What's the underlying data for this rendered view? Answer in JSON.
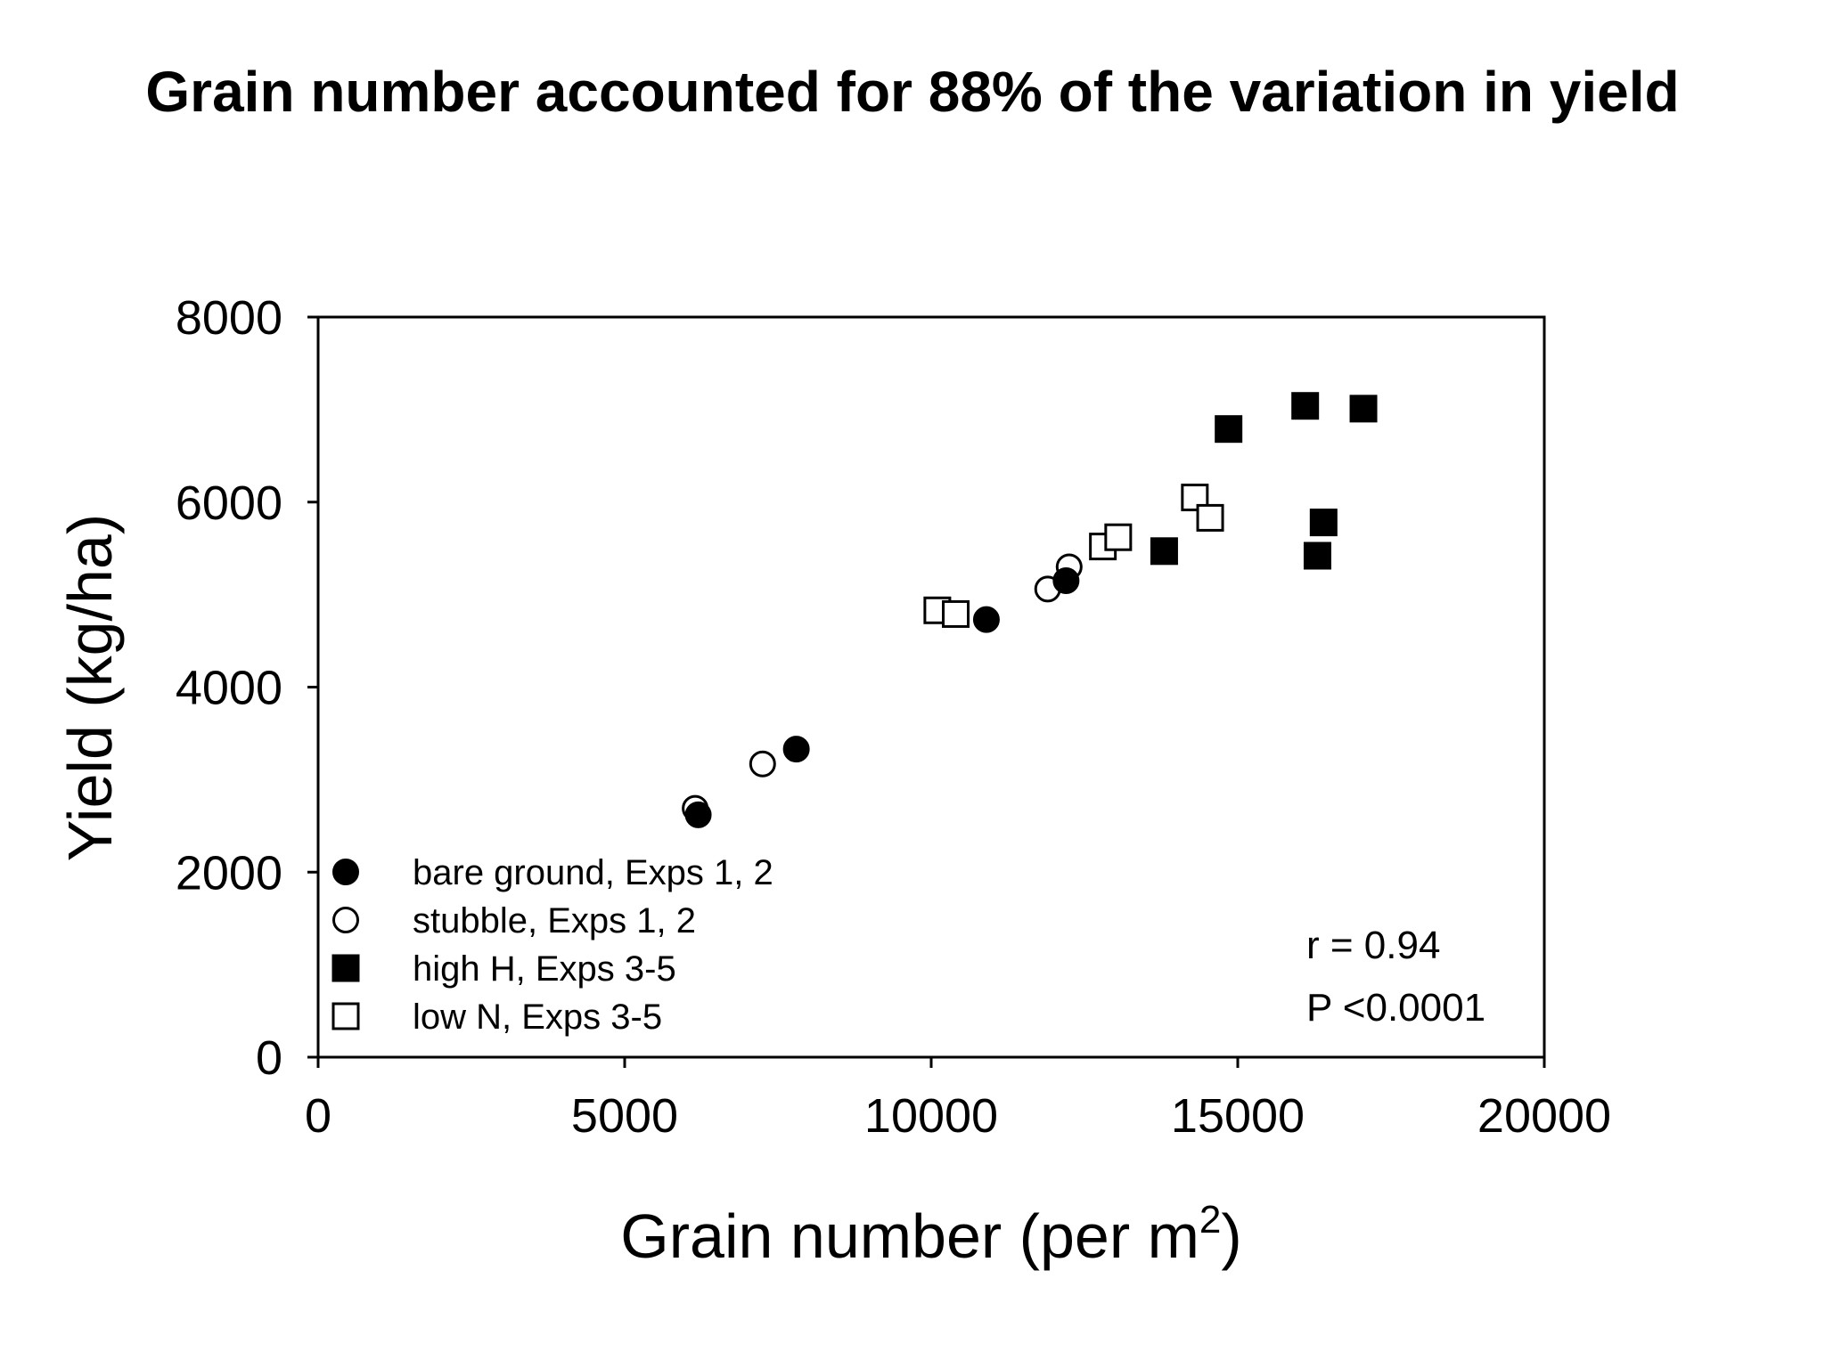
{
  "chart_data": {
    "type": "scatter",
    "title": "Grain number accounted for 88% of the variation in yield",
    "xlabel": "Grain number (per m",
    "xlabel_superscript": "2",
    "xlabel_suffix": ")",
    "ylabel": "Yield (kg/ha)",
    "xlim": [
      0,
      20000
    ],
    "ylim": [
      0,
      8000
    ],
    "x_ticks": [
      0,
      5000,
      10000,
      15000,
      20000
    ],
    "y_ticks": [
      0,
      2000,
      4000,
      6000,
      8000
    ],
    "x_tick_labels": [
      "0",
      "5000",
      "10000",
      "15000",
      "20000"
    ],
    "y_tick_labels": [
      "0",
      "2000",
      "4000",
      "6000",
      "8000"
    ],
    "grid": false,
    "legend_position": "bottom-left",
    "series": [
      {
        "name": "bare ground, Exps 1, 2",
        "marker": "circle",
        "filled": true,
        "points": [
          [
            6200,
            2620
          ],
          [
            7800,
            3330
          ],
          [
            10900,
            4730
          ],
          [
            12200,
            5150
          ]
        ]
      },
      {
        "name": "stubble, Exps 1, 2",
        "marker": "circle",
        "filled": false,
        "points": [
          [
            6150,
            2690
          ],
          [
            7250,
            3170
          ],
          [
            11900,
            5060
          ],
          [
            12250,
            5300
          ]
        ]
      },
      {
        "name": "high H, Exps 3-5",
        "marker": "square",
        "filled": true,
        "points": [
          [
            13800,
            5470
          ],
          [
            14850,
            6790
          ],
          [
            16100,
            7040
          ],
          [
            17050,
            7010
          ],
          [
            16300,
            5420
          ],
          [
            16400,
            5780
          ]
        ]
      },
      {
        "name": "low N, Exps 3-5",
        "marker": "square",
        "filled": false,
        "points": [
          [
            10100,
            4830
          ],
          [
            10400,
            4790
          ],
          [
            12800,
            5520
          ],
          [
            13050,
            5620
          ],
          [
            14300,
            6050
          ],
          [
            14550,
            5830
          ]
        ]
      }
    ],
    "annotations": [
      "r = 0.94",
      "P <0.0001"
    ]
  }
}
